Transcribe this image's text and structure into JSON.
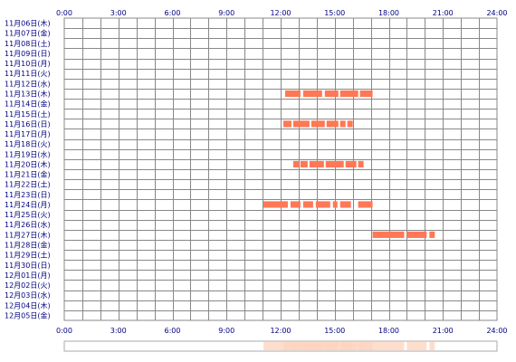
{
  "chart_data": {
    "type": "heatmap",
    "x_ticks": [
      "0:00",
      "3:00",
      "6:00",
      "9:00",
      "12:00",
      "15:00",
      "18:00",
      "21:00",
      "24:00"
    ],
    "xlim": [
      0,
      24
    ],
    "rows": [
      "11月06日(木)",
      "11月07日(金)",
      "11月08日(土)",
      "11月09日(日)",
      "11月10日(月)",
      "11月11日(火)",
      "11月12日(水)",
      "11月13日(木)",
      "11月14日(金)",
      "11月15日(土)",
      "11月16日(日)",
      "11月17日(月)",
      "11月18日(火)",
      "11月19日(水)",
      "11月20日(木)",
      "11月21日(金)",
      "11月22日(土)",
      "11月23日(日)",
      "11月24日(月)",
      "11月25日(火)",
      "11月26日(水)",
      "11月27日(木)",
      "11月28日(金)",
      "11月29日(土)",
      "11月30日(日)",
      "12月01日(月)",
      "12月02日(火)",
      "12月03日(水)",
      "12月04日(木)",
      "12月05日(金)"
    ],
    "activity": [
      {
        "row": 7,
        "segments": [
          [
            12.25,
            13.1
          ],
          [
            13.25,
            14.3
          ],
          [
            14.45,
            15.2
          ],
          [
            15.3,
            16.3
          ],
          [
            16.4,
            17.1
          ]
        ]
      },
      {
        "row": 10,
        "segments": [
          [
            12.15,
            12.6
          ],
          [
            12.7,
            13.6
          ],
          [
            13.7,
            14.45
          ],
          [
            14.55,
            15.2
          ],
          [
            15.3,
            15.6
          ],
          [
            15.7,
            16.0
          ]
        ]
      },
      {
        "row": 14,
        "segments": [
          [
            12.7,
            13.0
          ],
          [
            13.1,
            13.5
          ],
          [
            13.6,
            14.4
          ],
          [
            14.5,
            15.5
          ],
          [
            15.6,
            16.2
          ],
          [
            16.3,
            16.6
          ]
        ]
      },
      {
        "row": 18,
        "segments": [
          [
            11.05,
            12.4
          ],
          [
            12.55,
            13.1
          ],
          [
            13.25,
            13.8
          ],
          [
            13.95,
            14.75
          ],
          [
            14.9,
            15.15
          ],
          [
            15.3,
            15.9
          ],
          [
            16.3,
            17.1
          ]
        ]
      },
      {
        "row": 21,
        "segments": [
          [
            17.1,
            18.85
          ],
          [
            19.0,
            20.1
          ],
          [
            20.25,
            20.55
          ]
        ]
      }
    ],
    "colors": {
      "bar": "#ff7755",
      "grid": "#888888",
      "text": "#000080",
      "overview": "#ffd5c0"
    }
  }
}
